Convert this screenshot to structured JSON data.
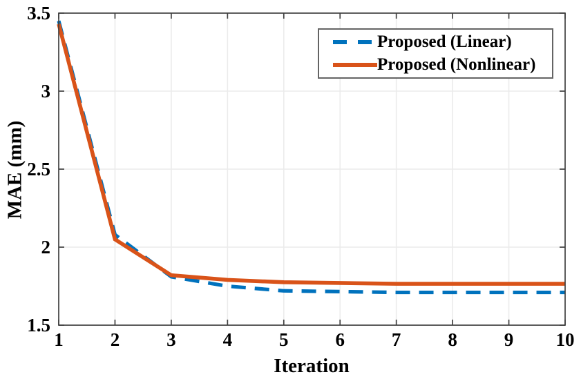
{
  "chart_data": {
    "type": "line",
    "title": "",
    "xlabel": "Iteration",
    "ylabel": "MAE (mm)",
    "xlim": [
      1,
      10
    ],
    "ylim": [
      1.5,
      3.5
    ],
    "xticks": [
      1,
      2,
      3,
      4,
      5,
      6,
      7,
      8,
      9,
      10
    ],
    "xtick_labels": [
      "1",
      "2",
      "3",
      "4",
      "5",
      "6",
      "7",
      "8",
      "9",
      "10"
    ],
    "yticks": [
      1.5,
      2,
      2.5,
      3,
      3.5
    ],
    "ytick_labels": [
      "1.5",
      "2",
      "2.5",
      "3",
      "3.5"
    ],
    "grid": true,
    "legend_position": "top-right",
    "x": [
      1,
      2,
      3,
      4,
      5,
      6,
      7,
      8,
      9,
      10
    ],
    "series": [
      {
        "name": "Proposed (Linear)",
        "color": "#0072BD",
        "style": "dashed",
        "values": [
          3.45,
          2.08,
          1.81,
          1.75,
          1.72,
          1.715,
          1.71,
          1.71,
          1.71,
          1.71
        ]
      },
      {
        "name": "Proposed (Nonlinear)",
        "color": "#D95319",
        "style": "solid",
        "values": [
          3.43,
          2.05,
          1.82,
          1.79,
          1.775,
          1.77,
          1.765,
          1.765,
          1.765,
          1.765
        ]
      }
    ],
    "colors": {
      "grid": "#ebebeb",
      "axis": "#404040",
      "tick_text": "#000000",
      "legend_border": "#646464",
      "background": "#ffffff"
    }
  }
}
